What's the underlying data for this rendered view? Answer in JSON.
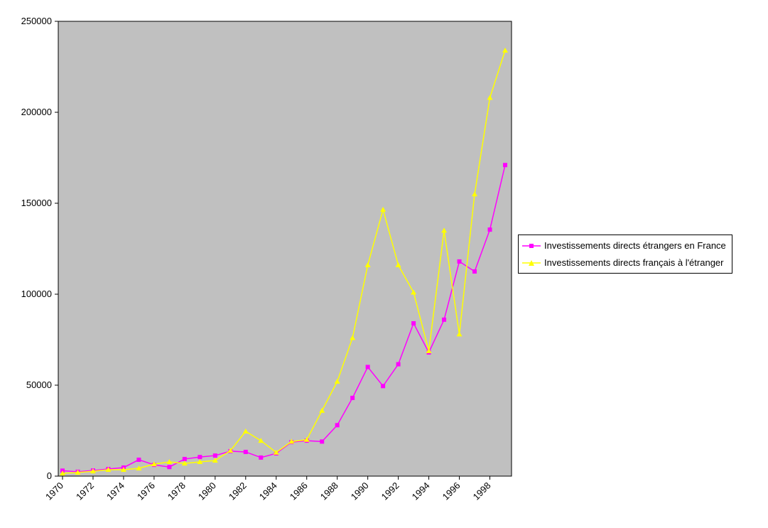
{
  "chart_data": {
    "type": "line",
    "title": "",
    "xlabel": "",
    "ylabel": "",
    "x": [
      1970,
      1971,
      1972,
      1973,
      1974,
      1975,
      1976,
      1977,
      1978,
      1979,
      1980,
      1981,
      1982,
      1983,
      1984,
      1985,
      1986,
      1987,
      1988,
      1989,
      1990,
      1991,
      1992,
      1993,
      1994,
      1995,
      1996,
      1997,
      1998,
      1999
    ],
    "x_tick_labels": [
      "1970",
      "1972",
      "1974",
      "1976",
      "1978",
      "1980",
      "1982",
      "1984",
      "1986",
      "1988",
      "1990",
      "1992",
      "1994",
      "1996",
      "1998"
    ],
    "y_ticks": [
      0,
      50000,
      100000,
      150000,
      200000,
      250000
    ],
    "ylim": [
      0,
      250000
    ],
    "grid": false,
    "plot_bg": "#c0c0c0",
    "legend_position": "right",
    "series": [
      {
        "name": "Investissements directs étrangers en France",
        "color": "#ff00ff",
        "marker": "square",
        "values": [
          3000,
          2400,
          3100,
          3900,
          4700,
          9000,
          6200,
          5000,
          9400,
          10500,
          11300,
          13700,
          13300,
          10200,
          12500,
          18700,
          19500,
          19000,
          28000,
          43000,
          60000,
          49500,
          61500,
          84000,
          68000,
          86000,
          118000,
          112500,
          135500,
          171000
        ]
      },
      {
        "name": "Investissements directs français à l'étranger",
        "color": "#ffff00",
        "marker": "triangle",
        "values": [
          1500,
          2000,
          2700,
          3500,
          3500,
          4300,
          6600,
          7800,
          7000,
          7800,
          8600,
          14000,
          24600,
          19500,
          13000,
          19000,
          20000,
          36000,
          52000,
          76000,
          116000,
          146500,
          116000,
          101000,
          68800,
          135000,
          78000,
          155000,
          208000,
          234000
        ]
      }
    ]
  }
}
